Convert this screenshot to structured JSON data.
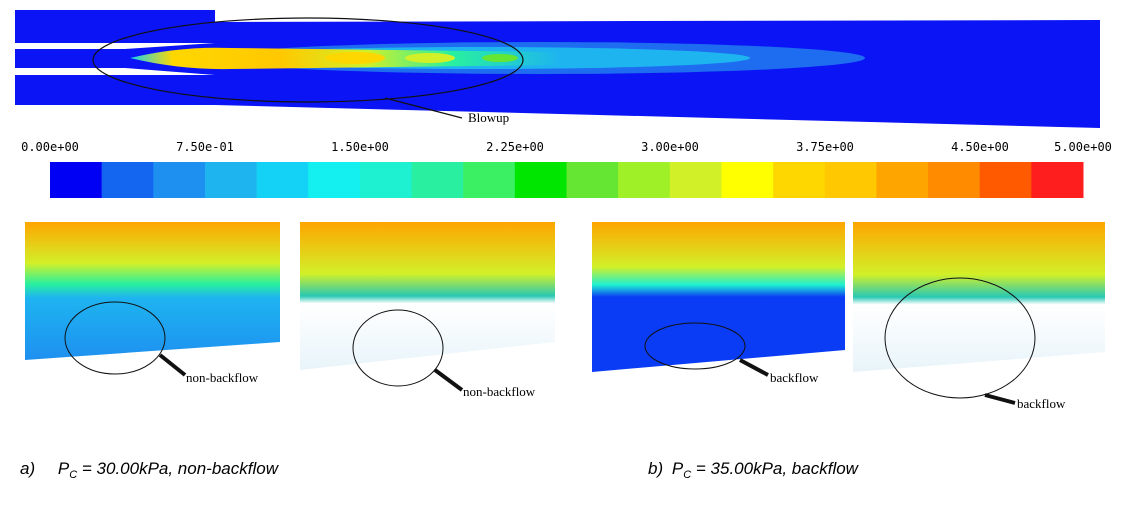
{
  "nozzle": {
    "callout": "Blowup"
  },
  "colorbar": {
    "labels": [
      "0.00e+00",
      "7.50e-01",
      "1.50e+00",
      "2.25e+00",
      "3.00e+00",
      "3.75e+00",
      "4.50e+00",
      "5.00e+00"
    ]
  },
  "panels": [
    {
      "callout": "non-backflow"
    },
    {
      "callout": "non-backflow"
    },
    {
      "callout": "backflow"
    },
    {
      "callout": "backflow"
    }
  ],
  "captions": [
    {
      "label": "a)",
      "symbol": "P",
      "subscript": "C",
      "text": " = 30.00kPa, non-backflow"
    },
    {
      "label": "b)",
      "symbol": "P",
      "subscript": "C",
      "text": " = 35.00kPa, backflow"
    }
  ]
}
